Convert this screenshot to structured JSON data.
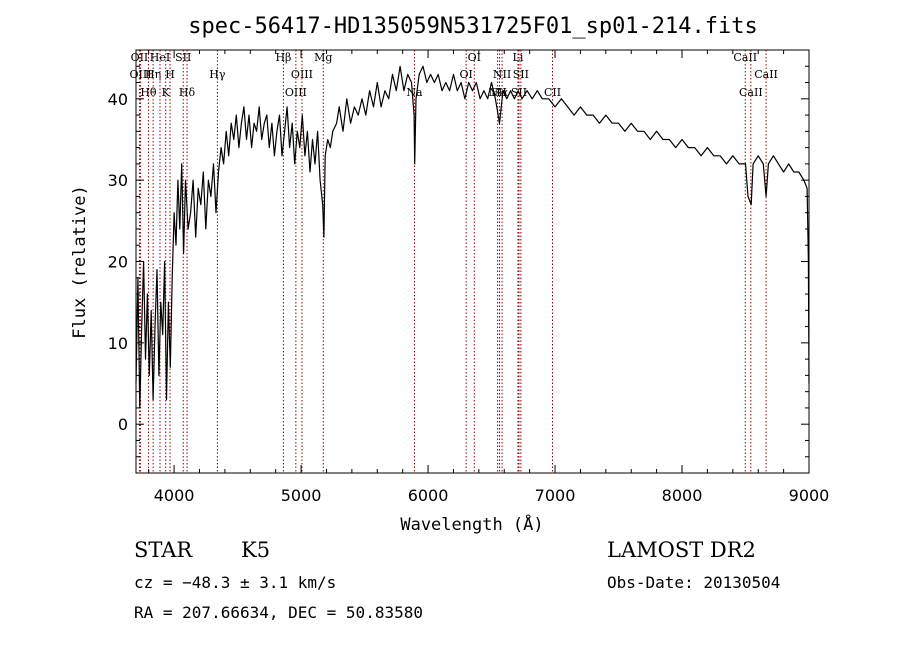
{
  "chart_data": {
    "type": "line",
    "title": "spec-56417-HD135059N531725F01_sp01-214.fits",
    "xlabel": "Wavelength (Å)",
    "ylabel": "Flux (relative)",
    "xlim": [
      3700,
      9000
    ],
    "ylim": [
      -6,
      46
    ],
    "x_ticks": [
      4000,
      5000,
      6000,
      7000,
      8000,
      9000
    ],
    "y_ticks": [
      0,
      10,
      20,
      30,
      40
    ],
    "grid": false,
    "line_color": "#000000",
    "marker_color": "#990000",
    "spectrum_points": [
      [
        3700,
        5
      ],
      [
        3715,
        18
      ],
      [
        3730,
        2
      ],
      [
        3745,
        12
      ],
      [
        3760,
        20
      ],
      [
        3775,
        8
      ],
      [
        3790,
        16
      ],
      [
        3805,
        6
      ],
      [
        3820,
        14
      ],
      [
        3835,
        3
      ],
      [
        3850,
        12
      ],
      [
        3865,
        19
      ],
      [
        3880,
        6
      ],
      [
        3895,
        15
      ],
      [
        3910,
        11
      ],
      [
        3925,
        20
      ],
      [
        3940,
        3
      ],
      [
        3955,
        15
      ],
      [
        3970,
        7
      ],
      [
        3985,
        18
      ],
      [
        4000,
        26
      ],
      [
        4015,
        22
      ],
      [
        4030,
        30
      ],
      [
        4045,
        24
      ],
      [
        4060,
        32
      ],
      [
        4075,
        21
      ],
      [
        4090,
        30
      ],
      [
        4110,
        24
      ],
      [
        4130,
        26
      ],
      [
        4150,
        30
      ],
      [
        4170,
        23
      ],
      [
        4190,
        29
      ],
      [
        4210,
        27
      ],
      [
        4230,
        31
      ],
      [
        4250,
        24
      ],
      [
        4270,
        30
      ],
      [
        4290,
        28
      ],
      [
        4310,
        32
      ],
      [
        4330,
        26
      ],
      [
        4350,
        31
      ],
      [
        4370,
        34
      ],
      [
        4390,
        32
      ],
      [
        4410,
        36
      ],
      [
        4430,
        33
      ],
      [
        4450,
        37
      ],
      [
        4470,
        35
      ],
      [
        4490,
        38
      ],
      [
        4510,
        34
      ],
      [
        4530,
        37
      ],
      [
        4550,
        39
      ],
      [
        4570,
        35
      ],
      [
        4590,
        38
      ],
      [
        4610,
        34
      ],
      [
        4630,
        37
      ],
      [
        4650,
        36
      ],
      [
        4670,
        39
      ],
      [
        4690,
        35
      ],
      [
        4710,
        37
      ],
      [
        4730,
        38
      ],
      [
        4750,
        34
      ],
      [
        4770,
        37
      ],
      [
        4790,
        33
      ],
      [
        4810,
        36
      ],
      [
        4830,
        38
      ],
      [
        4850,
        33
      ],
      [
        4870,
        36
      ],
      [
        4890,
        39
      ],
      [
        4910,
        34
      ],
      [
        4930,
        37
      ],
      [
        4950,
        32
      ],
      [
        4970,
        36
      ],
      [
        4990,
        34
      ],
      [
        5010,
        38
      ],
      [
        5030,
        33
      ],
      [
        5050,
        36
      ],
      [
        5070,
        31
      ],
      [
        5090,
        35
      ],
      [
        5110,
        32
      ],
      [
        5130,
        36
      ],
      [
        5150,
        30
      ],
      [
        5170,
        27
      ],
      [
        5180,
        23
      ],
      [
        5190,
        33
      ],
      [
        5210,
        35
      ],
      [
        5230,
        34
      ],
      [
        5250,
        36
      ],
      [
        5280,
        37
      ],
      [
        5300,
        39
      ],
      [
        5330,
        36
      ],
      [
        5360,
        40
      ],
      [
        5390,
        37
      ],
      [
        5420,
        39
      ],
      [
        5450,
        38
      ],
      [
        5480,
        40
      ],
      [
        5510,
        38
      ],
      [
        5540,
        41
      ],
      [
        5570,
        39
      ],
      [
        5600,
        42
      ],
      [
        5630,
        39
      ],
      [
        5660,
        41
      ],
      [
        5690,
        40
      ],
      [
        5720,
        43
      ],
      [
        5750,
        41
      ],
      [
        5780,
        44
      ],
      [
        5810,
        41
      ],
      [
        5840,
        43
      ],
      [
        5870,
        42
      ],
      [
        5890,
        38
      ],
      [
        5895,
        32
      ],
      [
        5905,
        40
      ],
      [
        5930,
        43
      ],
      [
        5960,
        44
      ],
      [
        5990,
        42
      ],
      [
        6020,
        43
      ],
      [
        6050,
        42
      ],
      [
        6080,
        43
      ],
      [
        6110,
        41
      ],
      [
        6140,
        42
      ],
      [
        6170,
        41
      ],
      [
        6200,
        43
      ],
      [
        6230,
        41
      ],
      [
        6260,
        42
      ],
      [
        6290,
        40
      ],
      [
        6320,
        42
      ],
      [
        6350,
        41
      ],
      [
        6380,
        42
      ],
      [
        6410,
        40
      ],
      [
        6440,
        41
      ],
      [
        6470,
        40
      ],
      [
        6500,
        42
      ],
      [
        6530,
        40
      ],
      [
        6563,
        37
      ],
      [
        6590,
        41
      ],
      [
        6620,
        40
      ],
      [
        6650,
        41
      ],
      [
        6680,
        40
      ],
      [
        6710,
        41
      ],
      [
        6740,
        40
      ],
      [
        6780,
        41
      ],
      [
        6820,
        40
      ],
      [
        6860,
        41
      ],
      [
        6900,
        40
      ],
      [
        6950,
        40
      ],
      [
        7000,
        39
      ],
      [
        7050,
        40
      ],
      [
        7100,
        39
      ],
      [
        7150,
        38
      ],
      [
        7200,
        39
      ],
      [
        7250,
        38
      ],
      [
        7300,
        38
      ],
      [
        7350,
        37
      ],
      [
        7400,
        38
      ],
      [
        7450,
        37
      ],
      [
        7500,
        37
      ],
      [
        7550,
        36
      ],
      [
        7600,
        37
      ],
      [
        7650,
        36
      ],
      [
        7700,
        36
      ],
      [
        7750,
        35
      ],
      [
        7800,
        36
      ],
      [
        7850,
        35
      ],
      [
        7900,
        35
      ],
      [
        7950,
        34
      ],
      [
        8000,
        35
      ],
      [
        8050,
        34
      ],
      [
        8100,
        34
      ],
      [
        8150,
        33
      ],
      [
        8200,
        34
      ],
      [
        8250,
        33
      ],
      [
        8300,
        33
      ],
      [
        8350,
        32
      ],
      [
        8400,
        33
      ],
      [
        8450,
        32
      ],
      [
        8500,
        32
      ],
      [
        8520,
        28
      ],
      [
        8545,
        27
      ],
      [
        8560,
        32
      ],
      [
        8600,
        33
      ],
      [
        8640,
        32
      ],
      [
        8662,
        28
      ],
      [
        8680,
        32
      ],
      [
        8720,
        33
      ],
      [
        8760,
        32
      ],
      [
        8800,
        31
      ],
      [
        8840,
        32
      ],
      [
        8880,
        31
      ],
      [
        8920,
        31
      ],
      [
        8960,
        30
      ],
      [
        8985,
        29
      ],
      [
        8995,
        20
      ],
      [
        9000,
        5
      ]
    ],
    "line_markers": [
      {
        "name": "OII",
        "wavelength": 3727,
        "row": 1
      },
      {
        "name": "OIII",
        "wavelength": 3736,
        "row": 2
      },
      {
        "name": "Hθ",
        "wavelength": 3798,
        "row": 3
      },
      {
        "name": "Hη",
        "wavelength": 3835,
        "row": 2
      },
      {
        "name": "HeI",
        "wavelength": 3889,
        "row": 1
      },
      {
        "name": "K",
        "wavelength": 3934,
        "row": 3
      },
      {
        "name": "H",
        "wavelength": 3968,
        "row": 2
      },
      {
        "name": "SII",
        "wavelength": 4072,
        "row": 1
      },
      {
        "name": "Hδ",
        "wavelength": 4102,
        "row": 3
      },
      {
        "name": "Hγ",
        "wavelength": 4341,
        "row": 2
      },
      {
        "name": "Hβ",
        "wavelength": 4861,
        "row": 1
      },
      {
        "name": "OIII",
        "wavelength": 4959,
        "row": 3
      },
      {
        "name": "OIII",
        "wavelength": 5007,
        "row": 2
      },
      {
        "name": "Mg",
        "wavelength": 5175,
        "row": 1
      },
      {
        "name": "Na",
        "wavelength": 5893,
        "row": 3
      },
      {
        "name": "OI",
        "wavelength": 6300,
        "row": 2
      },
      {
        "name": "OI",
        "wavelength": 6364,
        "row": 1
      },
      {
        "name": "NII",
        "wavelength": 6548,
        "row": 3
      },
      {
        "name": "Hα",
        "wavelength": 6563,
        "row": 3
      },
      {
        "name": "NII",
        "wavelength": 6583,
        "row": 2
      },
      {
        "name": "Li",
        "wavelength": 6708,
        "row": 1
      },
      {
        "name": "SII",
        "wavelength": 6716,
        "row": 3
      },
      {
        "name": "SII",
        "wavelength": 6731,
        "row": 2
      },
      {
        "name": "CII",
        "wavelength": 6980,
        "row": 3
      },
      {
        "name": "CaII",
        "wavelength": 8498,
        "row": 1
      },
      {
        "name": "CaII",
        "wavelength": 8542,
        "row": 3
      },
      {
        "name": "CaII",
        "wavelength": 8662,
        "row": 2
      }
    ]
  },
  "info": {
    "class_label": "STAR",
    "subclass_label": "K5",
    "survey": "LAMOST DR2",
    "cz": "cz = −48.3 ± 3.1 km/s",
    "obs_date": "Obs-Date: 20130504",
    "coords": "RA = 207.66634, DEC =  50.83580"
  }
}
